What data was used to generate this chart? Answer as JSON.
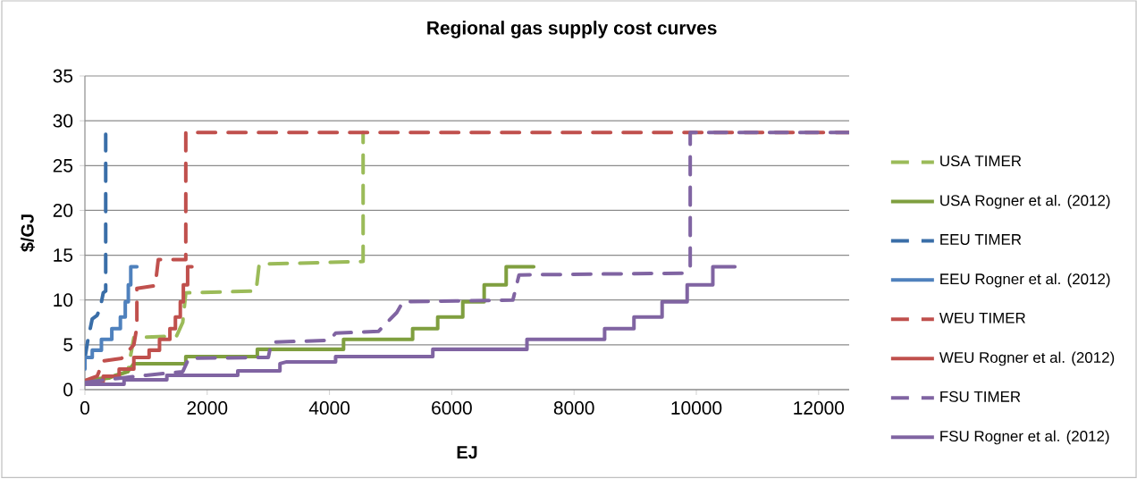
{
  "chart_data": {
    "type": "line",
    "title": "Regional gas supply cost curves",
    "xlabel": "EJ",
    "ylabel": "$/GJ",
    "xlim": [
      0,
      12500
    ],
    "xticks": [
      0,
      2000,
      4000,
      6000,
      8000,
      10000,
      12000
    ],
    "ylim": [
      0,
      35
    ],
    "yticks": [
      0,
      5,
      10,
      15,
      20,
      25,
      30,
      35
    ],
    "grid": "y",
    "legend": "right",
    "marker": "none",
    "series": [
      {
        "name": "USA TIMER",
        "color": "#9bbb59",
        "line_style": "dashed",
        "x": [
          0,
          500,
          700,
          800,
          1500,
          1600,
          1650,
          2800,
          2850,
          4550,
          4550
        ],
        "values": [
          1,
          1.5,
          2,
          5.8,
          6,
          7.5,
          10.8,
          11,
          14,
          14.3,
          28.7
        ]
      },
      {
        "name": "USA Rogner et al. (2012)",
        "color": "#7f9f3f",
        "line_style": "solid",
        "x": [
          0,
          400,
          500,
          700,
          800,
          1650,
          1650,
          2820,
          2820,
          4230,
          4230,
          5360,
          5360,
          5770,
          5770,
          6180,
          6180,
          6530,
          6530,
          6890,
          6890,
          7340
        ],
        "values": [
          1,
          1.3,
          1.6,
          2,
          2.9,
          2.9,
          3.7,
          3.7,
          4.5,
          4.5,
          5.6,
          5.6,
          6.8,
          6.8,
          8.1,
          8.1,
          9.8,
          9.8,
          11.7,
          11.7,
          13.7,
          13.7
        ]
      },
      {
        "name": "EEU TIMER",
        "color": "#3a6ea8",
        "line_style": "dashed",
        "x": [
          0,
          50,
          120,
          200,
          250,
          300,
          340,
          340
        ],
        "values": [
          3.5,
          5.6,
          7.9,
          8.3,
          9.1,
          10.8,
          11,
          28.5
        ]
      },
      {
        "name": "EEU Rogner et al. (2012)",
        "color": "#4f81bd",
        "line_style": "solid",
        "x": [
          0,
          0,
          120,
          120,
          270,
          270,
          440,
          440,
          580,
          580,
          660,
          660,
          710,
          710,
          750,
          750,
          850
        ],
        "values": [
          2.3,
          3.6,
          3.6,
          4.4,
          4.4,
          5.6,
          5.6,
          6.8,
          6.8,
          8.1,
          8.1,
          9.8,
          9.8,
          11.7,
          11.7,
          13.7,
          13.7
        ]
      },
      {
        "name": "WEU TIMER",
        "color": "#c0504d",
        "line_style": "dashed",
        "x": [
          0,
          200,
          300,
          600,
          800,
          850,
          850,
          1150,
          1200,
          1650,
          1650,
          12500
        ],
        "values": [
          1,
          1.5,
          3.2,
          3.5,
          5,
          7,
          11.3,
          11.6,
          14.5,
          14.5,
          28.7,
          28.7
        ]
      },
      {
        "name": "WEU Rogner et al. (2012)",
        "color": "#c0504d",
        "line_style": "solid",
        "x": [
          0,
          300,
          300,
          560,
          560,
          800,
          800,
          1050,
          1050,
          1220,
          1220,
          1390,
          1390,
          1480,
          1480,
          1560,
          1560,
          1610,
          1610,
          1680,
          1680,
          1750
        ],
        "values": [
          0.9,
          0.9,
          1.5,
          1.5,
          2.3,
          2.3,
          3.6,
          3.6,
          4.4,
          4.4,
          5.6,
          5.6,
          6.8,
          6.8,
          8.1,
          8.1,
          9.8,
          9.8,
          11.7,
          11.7,
          13.7,
          13.7
        ]
      },
      {
        "name": "FSU TIMER",
        "color": "#8064a2",
        "line_style": "dashed",
        "x": [
          0,
          600,
          1000,
          1600,
          1700,
          3000,
          3050,
          4000,
          4100,
          4800,
          5100,
          5200,
          7000,
          7100,
          9800,
          9900,
          9900,
          12500
        ],
        "values": [
          0.8,
          1.3,
          1.6,
          2,
          3.5,
          3.6,
          5.3,
          5.5,
          6.3,
          6.5,
          8.6,
          9.8,
          10,
          12.8,
          13,
          13.5,
          28.7,
          28.7
        ]
      },
      {
        "name": "FSU Rogner et al. (2012)",
        "color": "#8064a2",
        "line_style": "solid",
        "x": [
          0,
          640,
          640,
          1340,
          1340,
          2500,
          2500,
          3190,
          3190,
          3300,
          4100,
          4100,
          5690,
          5690,
          7230,
          7230,
          8500,
          8500,
          8980,
          8980,
          9440,
          9440,
          9850,
          9850,
          10270,
          10270,
          10630
        ],
        "values": [
          0.6,
          0.6,
          1.1,
          1.1,
          1.6,
          1.6,
          2.1,
          2.1,
          2.9,
          3.1,
          3.1,
          3.7,
          3.7,
          4.5,
          4.5,
          5.6,
          5.6,
          6.8,
          6.8,
          8.1,
          8.1,
          9.8,
          9.8,
          11.7,
          11.7,
          13.7,
          13.7
        ]
      }
    ]
  }
}
